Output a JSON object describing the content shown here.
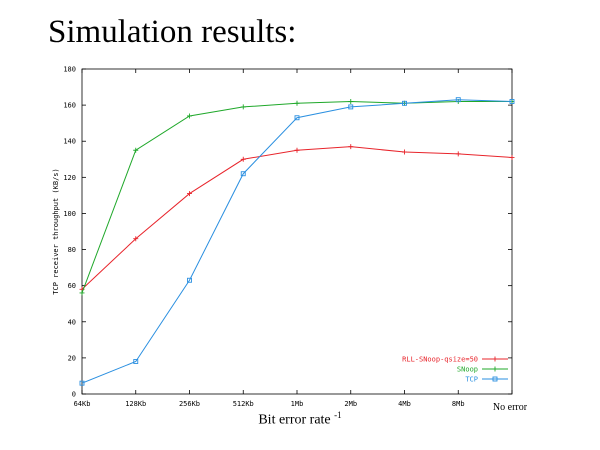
{
  "slide": {
    "title": "Simulation results:"
  },
  "chart_data": {
    "type": "line",
    "title": "",
    "xlabel": "Bit error rate",
    "xlabel_exponent": "-1",
    "ylabel": "TCP receiver throughput (KB/s)",
    "categories": [
      "64Kb",
      "128Kb",
      "256Kb",
      "512Kb",
      "1Mb",
      "2Mb",
      "4Mb",
      "8Mb",
      "No error"
    ],
    "ylim": [
      0,
      180
    ],
    "yticks": [
      0,
      20,
      40,
      60,
      80,
      100,
      120,
      140,
      160,
      180
    ],
    "grid": false,
    "legend_position": "bottom-right",
    "series": [
      {
        "name": "RLL-SNoop-qsize=50",
        "color": "#e8242b",
        "marker": "plus",
        "values": [
          58,
          86,
          111,
          130,
          135,
          137,
          134,
          133,
          131
        ]
      },
      {
        "name": "SNoop",
        "color": "#1fa82a",
        "marker": "plus",
        "values": [
          56,
          135,
          154,
          159,
          161,
          162,
          161,
          162,
          162
        ]
      },
      {
        "name": "TCP",
        "color": "#2a8fe0",
        "marker": "square",
        "values": [
          6,
          18,
          63,
          122,
          153,
          159,
          161,
          163,
          162
        ]
      }
    ]
  }
}
